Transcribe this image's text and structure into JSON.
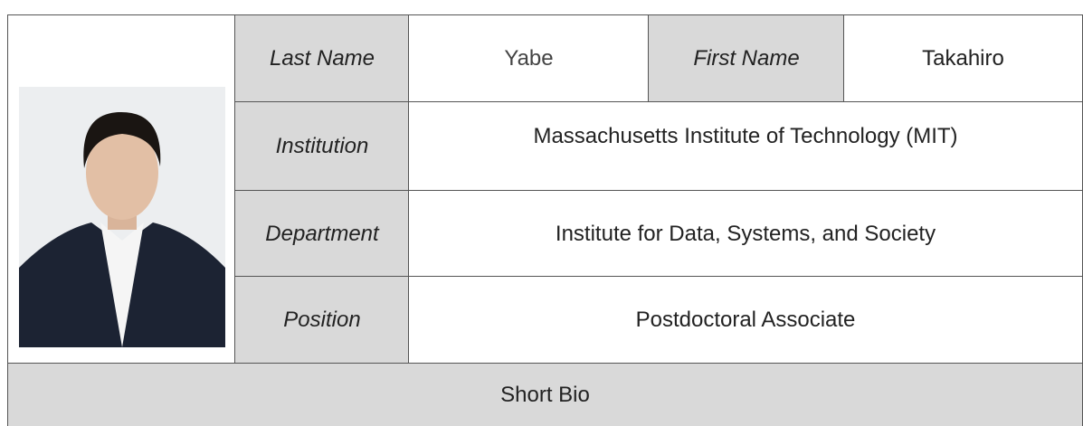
{
  "table": {
    "last_name_label": "Last Name",
    "last_name": "Yabe",
    "first_name_label": "First Name",
    "first_name": "Takahiro",
    "institution_label": "Institution",
    "institution": "Massachusetts Institute of Technology (MIT)",
    "department_label": "Department",
    "department": "Institute for Data, Systems, and Society",
    "position_label": "Position",
    "position": "Postdoctoral Associate",
    "bio_label": "Short Bio"
  }
}
